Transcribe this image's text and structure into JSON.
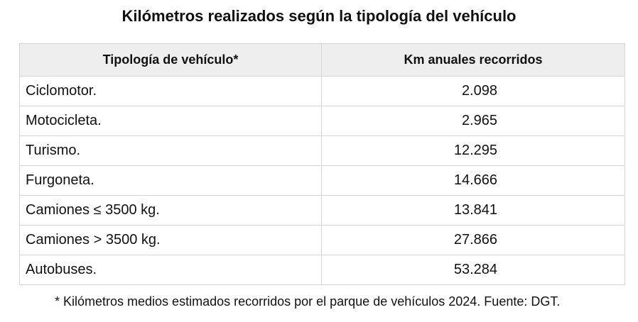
{
  "title": "Kilómetros realizados según la tipología del vehículo",
  "table": {
    "headers": [
      "Tipología de vehículo*",
      "Km anuales recorridos"
    ],
    "rows": [
      {
        "type": "Ciclomotor.",
        "km": "2.098"
      },
      {
        "type": "Motocicleta.",
        "km": "2.965"
      },
      {
        "type": "Turismo.",
        "km": "12.295"
      },
      {
        "type": "Furgoneta.",
        "km": "14.666"
      },
      {
        "type": "Camiones ≤ 3500 kg.",
        "km": "13.841"
      },
      {
        "type": "Camiones > 3500 kg.",
        "km": "27.866"
      },
      {
        "type": "Autobuses.",
        "km": "53.284"
      }
    ]
  },
  "footnote": "*  Kilómetros medios estimados recorridos por el parque de vehículos 2024. Fuente: DGT.",
  "colors": {
    "header_bg": "#eeeeee",
    "border": "#d4d4d4",
    "text": "#111111"
  }
}
